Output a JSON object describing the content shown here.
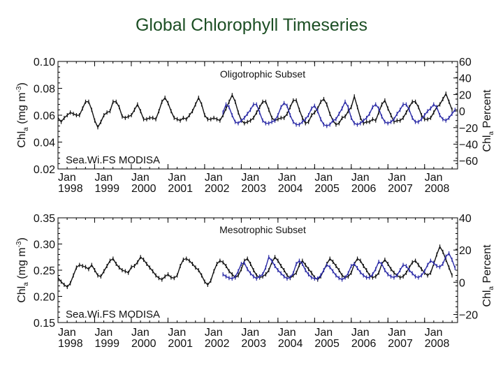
{
  "title": "Global Chlorophyll Timeseries",
  "colors": {
    "seawifs": "#111111",
    "modisa": "#2a2aa6",
    "title": "#1c4f24",
    "axes": "#000000"
  },
  "chart_data": [
    {
      "type": "line",
      "title": "Oligotrophic Subset",
      "ylabel": "Chl_a (mg m^-3)",
      "ylabel_main": "Chl",
      "ylabel_sub": "a",
      "ylabel_rest": " (mg m",
      "ylabel_sup": "-3",
      "ylabel_close": ")",
      "y2label": "Chl_a Percent",
      "y2label_main": "Chl",
      "y2label_sub": "a",
      "y2label_rest": " Percent",
      "ylim": [
        0.02,
        0.1
      ],
      "yticks": [
        "0.10",
        "0.08",
        "0.06",
        "0.04",
        "0.02"
      ],
      "ytick_values": [
        0.1,
        0.08,
        0.06,
        0.04,
        0.02
      ],
      "y2lim": [
        -70,
        60
      ],
      "y2ticks": [
        "60",
        "40",
        "20",
        "0",
        "−20",
        "−40",
        "−60"
      ],
      "y2tick_values": [
        60,
        40,
        20,
        0,
        -20,
        -40,
        -60
      ],
      "xlim": [
        1998.0,
        2008.9
      ],
      "xticks": [
        {
          "top": "Jan",
          "bottom": "1998"
        },
        {
          "top": "Jan",
          "bottom": "1999"
        },
        {
          "top": "Jan",
          "bottom": "2000"
        },
        {
          "top": "Jan",
          "bottom": "2001"
        },
        {
          "top": "Jan",
          "bottom": "2002"
        },
        {
          "top": "Jan",
          "bottom": "2003"
        },
        {
          "top": "Jan",
          "bottom": "2004"
        },
        {
          "top": "Jan",
          "bottom": "2005"
        },
        {
          "top": "Jan",
          "bottom": "2006"
        },
        {
          "top": "Jan",
          "bottom": "2007"
        },
        {
          "top": "Jan",
          "bottom": "2008"
        }
      ],
      "xtick_values": [
        1998,
        1999,
        2000,
        2001,
        2002,
        2003,
        2004,
        2005,
        2006,
        2007,
        2008
      ],
      "legend": "Sea.Wi.FS MODISA",
      "legend_position": "bottom-left",
      "series": [
        {
          "name": "SeaWiFS",
          "x_start": 1997.92,
          "x_step": 0.0833,
          "values": [
            0.064,
            0.058,
            0.055,
            0.058,
            0.06,
            0.062,
            0.061,
            0.06,
            0.06,
            0.065,
            0.07,
            0.07,
            0.064,
            0.056,
            0.051,
            0.055,
            0.06,
            0.062,
            0.063,
            0.07,
            0.07,
            0.066,
            0.059,
            0.058,
            0.059,
            0.06,
            0.064,
            0.068,
            0.063,
            0.057,
            0.057,
            0.058,
            0.058,
            0.057,
            0.063,
            0.07,
            0.073,
            0.069,
            0.063,
            0.058,
            0.057,
            0.056,
            0.058,
            0.057,
            0.06,
            0.063,
            0.068,
            0.073,
            0.068,
            0.06,
            0.057,
            0.057,
            0.058,
            0.057,
            0.056,
            0.06,
            0.065,
            0.07,
            0.075,
            0.07,
            0.062,
            0.056,
            0.054,
            0.055,
            0.056,
            0.058,
            0.062,
            0.066,
            0.07,
            0.07,
            0.064,
            0.058,
            0.056,
            0.057,
            0.058,
            0.058,
            0.061,
            0.066,
            0.071,
            0.071,
            0.064,
            0.058,
            0.054,
            0.055,
            0.06,
            0.062,
            0.065,
            0.07,
            0.072,
            0.068,
            0.061,
            0.056,
            0.053,
            0.054,
            0.058,
            0.059,
            0.063,
            0.066,
            0.074,
            0.066,
            0.058,
            0.054,
            0.055,
            0.055,
            0.057,
            0.056,
            0.062,
            0.068,
            0.071,
            0.065,
            0.06,
            0.055,
            0.056,
            0.056,
            0.058,
            0.062,
            0.066,
            0.07,
            0.07,
            0.066,
            0.06,
            0.057,
            0.057,
            0.058,
            0.062,
            0.066,
            0.068,
            0.072,
            0.076,
            0.07,
            0.064
          ]
        },
        {
          "name": "MODISA",
          "x_start": 2002.5,
          "x_step": 0.0833,
          "values": [
            0.062,
            0.068,
            0.066,
            0.06,
            0.055,
            0.054,
            0.056,
            0.058,
            0.061,
            0.064,
            0.068,
            0.068,
            0.062,
            0.056,
            0.054,
            0.054,
            0.055,
            0.056,
            0.06,
            0.066,
            0.069,
            0.067,
            0.06,
            0.055,
            0.053,
            0.053,
            0.055,
            0.057,
            0.06,
            0.065,
            0.067,
            0.063,
            0.057,
            0.053,
            0.052,
            0.053,
            0.056,
            0.057,
            0.061,
            0.065,
            0.07,
            0.066,
            0.058,
            0.054,
            0.053,
            0.054,
            0.056,
            0.058,
            0.061,
            0.066,
            0.068,
            0.065,
            0.059,
            0.055,
            0.054,
            0.055,
            0.057,
            0.061,
            0.064,
            0.068,
            0.068,
            0.064,
            0.058,
            0.055,
            0.055,
            0.057,
            0.06,
            0.063,
            0.065,
            0.068,
            0.066,
            0.06,
            0.057,
            0.056,
            0.058,
            0.061,
            0.064,
            0.066,
            0.065,
            0.062,
            0.058
          ]
        }
      ]
    },
    {
      "type": "line",
      "title": "Mesotrophic Subset",
      "ylabel": "Chl_a (mg m^-3)",
      "ylabel_main": "Chl",
      "ylabel_sub": "a",
      "ylabel_rest": " (mg m",
      "ylabel_sup": "-3",
      "ylabel_close": ")",
      "y2label": "Chl_a Percent",
      "y2label_main": "Chl",
      "y2label_sub": "a",
      "y2label_rest": " Percent",
      "ylim": [
        0.15,
        0.35
      ],
      "yticks": [
        "0.35",
        "0.30",
        "0.25",
        "0.20",
        "0.15"
      ],
      "ytick_values": [
        0.35,
        0.3,
        0.25,
        0.2,
        0.15
      ],
      "y2lim": [
        -25,
        40
      ],
      "y2ticks": [
        "40",
        "20",
        "0",
        "−20"
      ],
      "y2tick_values": [
        40,
        20,
        0,
        -20
      ],
      "xlim": [
        1998.0,
        2008.9
      ],
      "xticks": [
        {
          "top": "Jan",
          "bottom": "1998"
        },
        {
          "top": "Jan",
          "bottom": "1999"
        },
        {
          "top": "Jan",
          "bottom": "2000"
        },
        {
          "top": "Jan",
          "bottom": "2001"
        },
        {
          "top": "Jan",
          "bottom": "2002"
        },
        {
          "top": "Jan",
          "bottom": "2003"
        },
        {
          "top": "Jan",
          "bottom": "2004"
        },
        {
          "top": "Jan",
          "bottom": "2005"
        },
        {
          "top": "Jan",
          "bottom": "2006"
        },
        {
          "top": "Jan",
          "bottom": "2007"
        },
        {
          "top": "Jan",
          "bottom": "2008"
        }
      ],
      "xtick_values": [
        1998,
        1999,
        2000,
        2001,
        2002,
        2003,
        2004,
        2005,
        2006,
        2007,
        2008
      ],
      "legend": "Sea.Wi.FS MODISA",
      "legend_position": "bottom-left",
      "series": [
        {
          "name": "SeaWiFS",
          "x_start": 1997.92,
          "x_step": 0.0833,
          "values": [
            0.245,
            0.235,
            0.228,
            0.222,
            0.218,
            0.225,
            0.24,
            0.255,
            0.26,
            0.258,
            0.256,
            0.252,
            0.26,
            0.25,
            0.24,
            0.238,
            0.248,
            0.258,
            0.268,
            0.272,
            0.262,
            0.255,
            0.25,
            0.248,
            0.245,
            0.256,
            0.258,
            0.265,
            0.275,
            0.27,
            0.262,
            0.255,
            0.248,
            0.24,
            0.235,
            0.232,
            0.238,
            0.242,
            0.236,
            0.235,
            0.24,
            0.258,
            0.27,
            0.272,
            0.268,
            0.262,
            0.255,
            0.25,
            0.24,
            0.228,
            0.222,
            0.23,
            0.248,
            0.262,
            0.268,
            0.265,
            0.258,
            0.248,
            0.242,
            0.236,
            0.24,
            0.252,
            0.268,
            0.272,
            0.262,
            0.25,
            0.24,
            0.236,
            0.238,
            0.242,
            0.25,
            0.265,
            0.275,
            0.268,
            0.258,
            0.25,
            0.24,
            0.235,
            0.24,
            0.245,
            0.26,
            0.268,
            0.26,
            0.252,
            0.245,
            0.236,
            0.232,
            0.238,
            0.25,
            0.262,
            0.272,
            0.266,
            0.258,
            0.25,
            0.24,
            0.236,
            0.238,
            0.245,
            0.262,
            0.272,
            0.268,
            0.258,
            0.25,
            0.24,
            0.236,
            0.238,
            0.245,
            0.262,
            0.27,
            0.262,
            0.252,
            0.245,
            0.24,
            0.236,
            0.238,
            0.245,
            0.255,
            0.265,
            0.268,
            0.26,
            0.252,
            0.245,
            0.24,
            0.245,
            0.262,
            0.28,
            0.295,
            0.285,
            0.27,
            0.255,
            0.24
          ]
        },
        {
          "name": "MODISA",
          "x_start": 2002.5,
          "x_step": 0.0833,
          "values": [
            0.242,
            0.238,
            0.235,
            0.234,
            0.237,
            0.248,
            0.262,
            0.264,
            0.252,
            0.244,
            0.238,
            0.234,
            0.238,
            0.242,
            0.255,
            0.275,
            0.268,
            0.258,
            0.25,
            0.244,
            0.238,
            0.234,
            0.236,
            0.244,
            0.262,
            0.268,
            0.262,
            0.25,
            0.242,
            0.236,
            0.234,
            0.234,
            0.24,
            0.25,
            0.26,
            0.256,
            0.248,
            0.24,
            0.235,
            0.232,
            0.236,
            0.244,
            0.258,
            0.262,
            0.254,
            0.246,
            0.24,
            0.236,
            0.236,
            0.242,
            0.252,
            0.266,
            0.262,
            0.25,
            0.242,
            0.238,
            0.236,
            0.24,
            0.25,
            0.26,
            0.258,
            0.25,
            0.244,
            0.238,
            0.236,
            0.24,
            0.248,
            0.26,
            0.268,
            0.264,
            0.258,
            0.256,
            0.262,
            0.276,
            0.282,
            0.27,
            0.254,
            0.244,
            0.238,
            0.24,
            0.244
          ]
        }
      ]
    }
  ]
}
